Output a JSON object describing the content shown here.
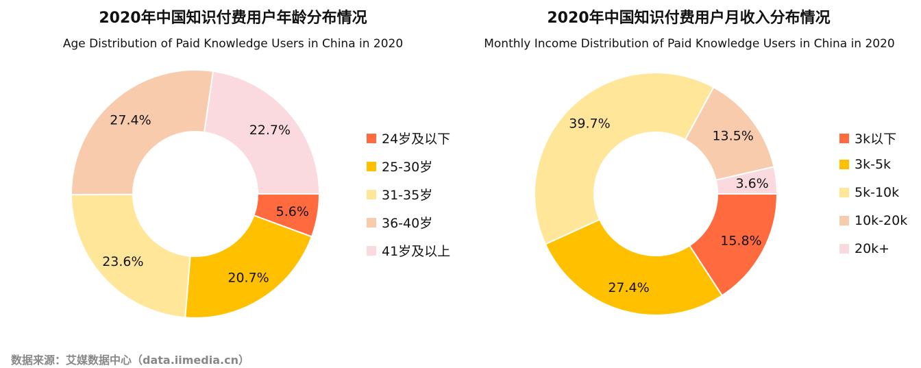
{
  "chart_data": [
    {
      "type": "pie",
      "donut": true,
      "title": "2020年中国知识付费用户年龄分布情况",
      "subtitle": "Age Distribution of Paid Knowledge Users in China in 2020",
      "categories": [
        "24岁及以下",
        "25-30岁",
        "31-35岁",
        "36-40岁",
        "41岁及以上"
      ],
      "values": [
        5.6,
        20.7,
        23.6,
        27.4,
        22.7
      ],
      "labels": [
        "5.6%",
        "20.7%",
        "23.6%",
        "27.4%",
        "22.7%"
      ],
      "colors": [
        "#FF6B3F",
        "#FFC000",
        "#FFE699",
        "#F8CBAD",
        "#FADADF"
      ],
      "legend": "right"
    },
    {
      "type": "pie",
      "donut": true,
      "title": "2020年中国知识付费用户月收入分布情况",
      "subtitle": "Monthly Income Distribution of Paid Knowledge Users  in China in 2020",
      "categories": [
        "3k以下",
        "3k-5k",
        "5k-10k",
        "10k-20k",
        "20k+"
      ],
      "values": [
        15.8,
        27.4,
        39.7,
        13.5,
        3.6
      ],
      "labels": [
        "15.8%",
        "27.4%",
        "39.7%",
        "13.5%",
        "3.6%"
      ],
      "colors": [
        "#FF6B3F",
        "#FFC000",
        "#FFE699",
        "#F8CBAD",
        "#FADADF"
      ],
      "legend": "right"
    }
  ],
  "source": "数据来源：艾媒数据中心（data.iimedia.cn）"
}
